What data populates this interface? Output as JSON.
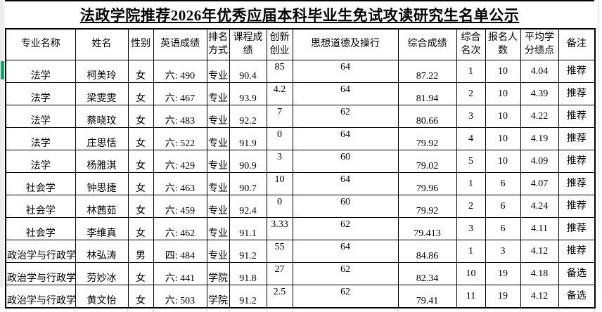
{
  "title": "法政学院推荐2026年优秀应届本科毕业生免试攻读研究生名单公示",
  "colors": {
    "selection_marker": "#1f9e6f",
    "table_border": "#000000",
    "faint_gridline": "#d9d9d9"
  },
  "table": {
    "columns": [
      {
        "key": "major",
        "label": "专业名称"
      },
      {
        "key": "name",
        "label": "姓名"
      },
      {
        "key": "gender",
        "label": "性别"
      },
      {
        "key": "english-score",
        "label": "英语成绩"
      },
      {
        "key": "ranking-method",
        "label": "排名方式"
      },
      {
        "key": "course-score",
        "label": "课程成绩"
      },
      {
        "key": "innovation",
        "label": "创新创业"
      },
      {
        "key": "moral-conduct",
        "label": "思想道德及操行"
      },
      {
        "key": "composite-score",
        "label": "综合成绩"
      },
      {
        "key": "composite-rank",
        "label": "综合名次"
      },
      {
        "key": "applicant-count",
        "label": "报名人数"
      },
      {
        "key": "gpa",
        "label": "平均学分绩点"
      },
      {
        "key": "remark",
        "label": "备注"
      }
    ],
    "rows": [
      [
        "法学",
        "柯美玲",
        "女",
        "六: 490",
        "专业",
        "90.4",
        "85",
        "64",
        "87.22",
        "1",
        "10",
        "4.04",
        "推荐"
      ],
      [
        "法学",
        "梁雯雯",
        "女",
        "六: 467",
        "专业",
        "93.9",
        "4.2",
        "64",
        "81.94",
        "2",
        "10",
        "4.39",
        "推荐"
      ],
      [
        "法学",
        "蔡晓玟",
        "女",
        "六: 483",
        "专业",
        "92.2",
        "7",
        "62",
        "80.66",
        "3",
        "10",
        "4.22",
        "推荐"
      ],
      [
        "法学",
        "庄思恬",
        "女",
        "六: 522",
        "专业",
        "91.9",
        "0",
        "64",
        "79.92",
        "4",
        "10",
        "4.19",
        "推荐"
      ],
      [
        "法学",
        "杨雅淇",
        "女",
        "六: 429",
        "专业",
        "90.9",
        "3",
        "60",
        "79.02",
        "5",
        "10",
        "4.09",
        "推荐"
      ],
      [
        "社会学",
        "钟思捷",
        "女",
        "六: 463",
        "专业",
        "90.7",
        "10",
        "64",
        "79.96",
        "1",
        "6",
        "4.07",
        "推荐"
      ],
      [
        "社会学",
        "林茜茹",
        "女",
        "六: 459",
        "专业",
        "92.4",
        "0",
        "60",
        "79.92",
        "2",
        "6",
        "4.24",
        "推荐"
      ],
      [
        "社会学",
        "李维真",
        "女",
        "六: 462",
        "专业",
        "91.1",
        "3.33",
        "62",
        "79.413",
        "3",
        "6",
        "4.11",
        "推荐"
      ],
      [
        "政治学与行政学",
        "林弘涛",
        "男",
        "四: 484",
        "专业",
        "91.2",
        "55",
        "64",
        "84.86",
        "1",
        "3",
        "4.12",
        "推荐"
      ],
      [
        "政治学与行政学",
        "劳妙冰",
        "女",
        "六: 441",
        "学院",
        "91.8",
        "27",
        "62",
        "82.34",
        "10",
        "19",
        "4.18",
        "备选"
      ],
      [
        "政治学与行政学",
        "黄文怡",
        "女",
        "六: 503",
        "学院",
        "91.2",
        "2.5",
        "62",
        "79.41",
        "11",
        "19",
        "4.12",
        "备选"
      ]
    ]
  }
}
